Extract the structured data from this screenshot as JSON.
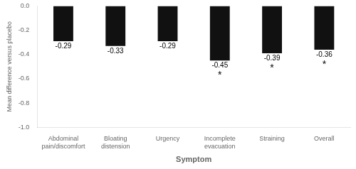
{
  "chart_data": {
    "type": "bar",
    "categories": [
      "Abdominal\npain/discomfort",
      "Bloating\ndistension",
      "Urgency",
      "Incomplete\nevacuation",
      "Straining",
      "Overall"
    ],
    "values": [
      -0.29,
      -0.33,
      -0.29,
      -0.45,
      -0.39,
      -0.36
    ],
    "value_labels": [
      "-0.29",
      "-0.33",
      "-0.29",
      "-0.45",
      "-0.39",
      "-0.36"
    ],
    "data_labels": true,
    "color": "#111111",
    "xlabel": "Symptom",
    "ylabel": "Mean difference versus placebo",
    "ylim": [
      -1.0,
      0.0
    ],
    "yticks": [
      {
        "value": 0,
        "label": "0.0"
      },
      -0.2,
      -0.4,
      -0.6,
      -0.8,
      {
        "value": -1,
        "label": "-1.0"
      }
    ],
    "grid": false,
    "annotations": [
      {
        "text": "*",
        "category": "Incomplete\nevacuation"
      },
      {
        "text": "*",
        "category": "Straining"
      },
      {
        "text": "*",
        "category": "Overall"
      }
    ]
  }
}
